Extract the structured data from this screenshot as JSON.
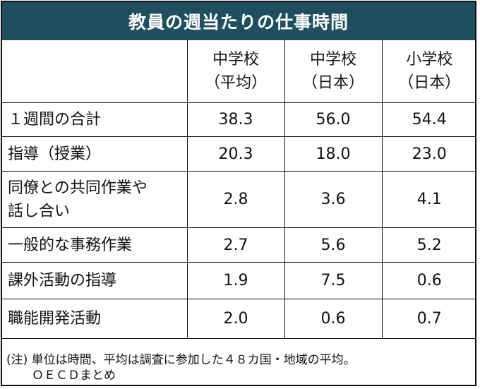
{
  "title": "教員の週当たりの仕事時間",
  "columns": [
    {
      "line1": "中学校",
      "line2": "（平均）"
    },
    {
      "line1": "中学校",
      "line2": "（日本）"
    },
    {
      "line1": "小学校",
      "line2": "（日本）"
    }
  ],
  "rows": [
    {
      "label": "１週間の合計",
      "label2": "",
      "values": [
        "38.3",
        "56.0",
        "54.4"
      ]
    },
    {
      "label": "指導（授業）",
      "label2": "",
      "values": [
        "20.3",
        "18.0",
        "23.0"
      ]
    },
    {
      "label": "同僚との共同作業や",
      "label2": "話し合い",
      "values": [
        "2.8",
        "3.6",
        "4.1"
      ]
    },
    {
      "label": "一般的な事務作業",
      "label2": "",
      "values": [
        "2.7",
        "5.6",
        "5.2"
      ]
    },
    {
      "label": "課外活動の指導",
      "label2": "",
      "values": [
        "1.9",
        "7.5",
        "0.6"
      ]
    },
    {
      "label": "職能開発活動",
      "label2": "",
      "values": [
        "2.0",
        "0.6",
        "0.7"
      ]
    }
  ],
  "note": {
    "line1": "(注) 単位は時間、平均は調査に参加した４８カ国・地域の平均。",
    "line2": "ＯＥＣＤまとめ"
  },
  "colors": {
    "title_bg": "#1f4e5f",
    "title_fg": "#ffffff",
    "border": "#111111"
  }
}
